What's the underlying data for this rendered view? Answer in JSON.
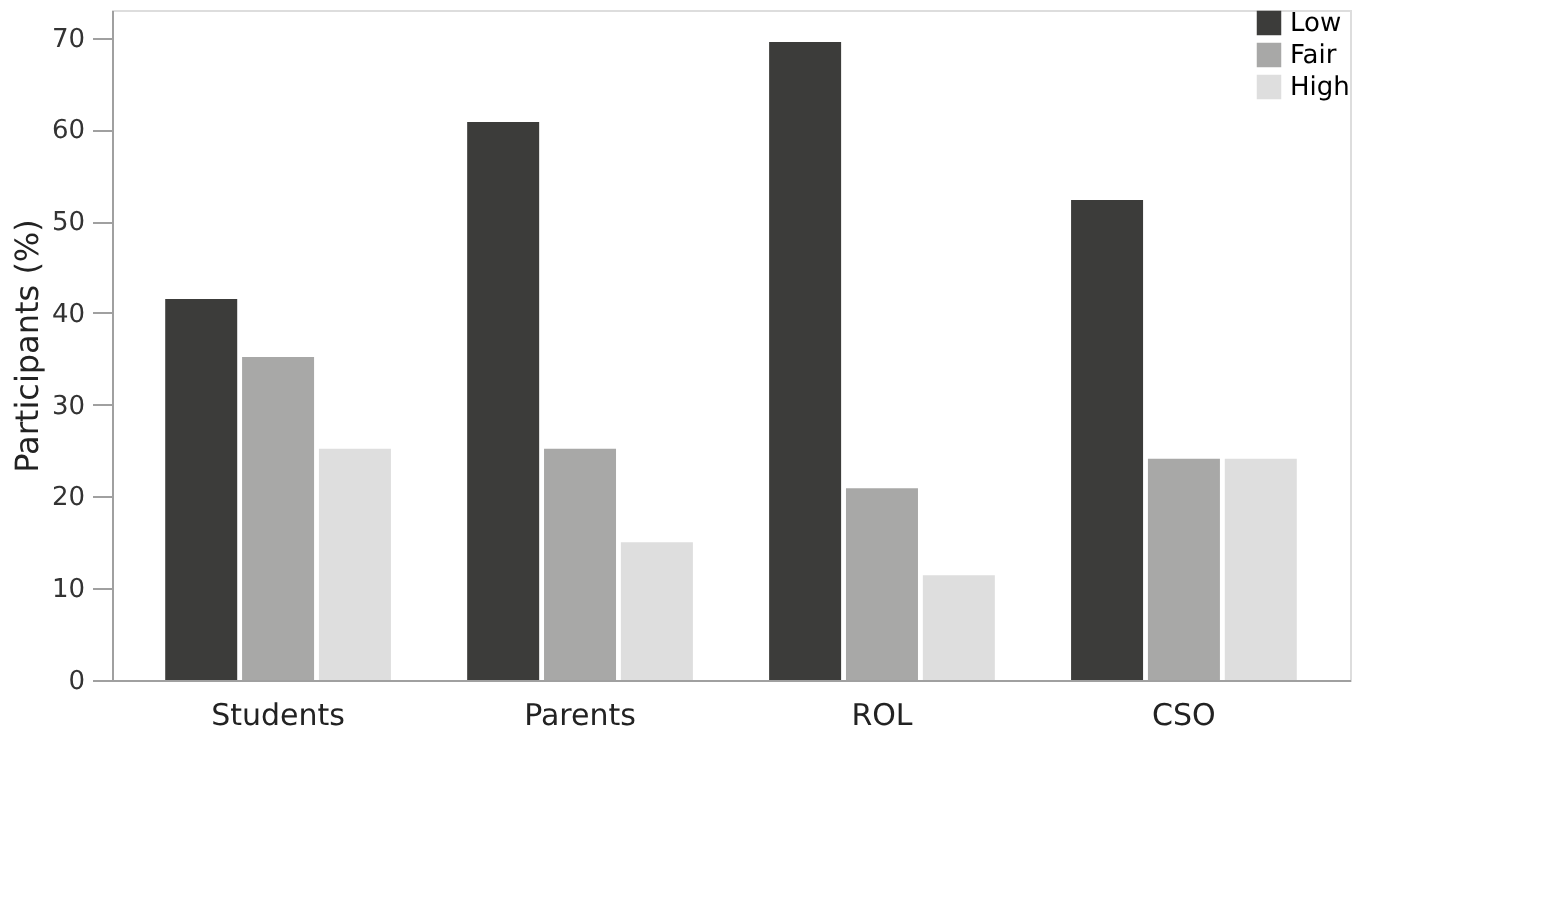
{
  "chart_data": {
    "type": "bar",
    "ylabel": "Participants (%)",
    "categories": [
      "Students",
      "Parents",
      "ROL",
      "CSO"
    ],
    "series": [
      {
        "name": "Low",
        "color": "#3c3c3a",
        "values": [
          41.5,
          60.8,
          69.5,
          52.3
        ]
      },
      {
        "name": "Fair",
        "color": "#a8a8a7",
        "values": [
          35.2,
          25.2,
          20.9,
          24.1
        ]
      },
      {
        "name": "High",
        "color": "#dedede",
        "values": [
          25.2,
          15,
          11.4,
          24.1
        ]
      }
    ],
    "ylim": [
      0,
      73
    ],
    "yticks": [
      0,
      10,
      20,
      30,
      40,
      50,
      60,
      70
    ],
    "grid": false,
    "legend": "top right"
  }
}
